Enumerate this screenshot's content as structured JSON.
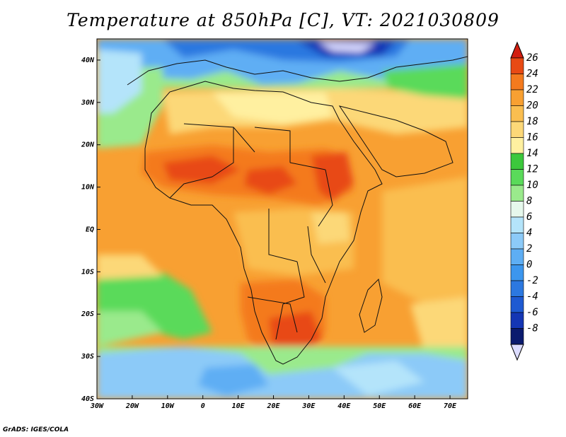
{
  "title": "Temperature at 850hPa [C], VT: 2021030809",
  "footer": "GrADS: IGES/COLA",
  "map": {
    "lon_range": [
      -30,
      75
    ],
    "lat_range": [
      -40,
      45
    ],
    "x_ticks": [
      {
        "value": -30,
        "label": "30W"
      },
      {
        "value": -20,
        "label": "20W"
      },
      {
        "value": -10,
        "label": "10W"
      },
      {
        "value": 0,
        "label": "0"
      },
      {
        "value": 10,
        "label": "10E"
      },
      {
        "value": 20,
        "label": "20E"
      },
      {
        "value": 30,
        "label": "30E"
      },
      {
        "value": 40,
        "label": "40E"
      },
      {
        "value": 50,
        "label": "50E"
      },
      {
        "value": 60,
        "label": "60E"
      },
      {
        "value": 70,
        "label": "70E"
      }
    ],
    "y_ticks": [
      {
        "value": 40,
        "label": "40N"
      },
      {
        "value": 30,
        "label": "30N"
      },
      {
        "value": 20,
        "label": "20N"
      },
      {
        "value": 10,
        "label": "10N"
      },
      {
        "value": 0,
        "label": "EQ"
      },
      {
        "value": -10,
        "label": "10S"
      },
      {
        "value": -20,
        "label": "20S"
      },
      {
        "value": -30,
        "label": "30S"
      },
      {
        "value": -40,
        "label": "40S"
      }
    ]
  },
  "colorbar": {
    "levels": [
      {
        "label": "-8",
        "color": "#0a1a6e"
      },
      {
        "label": "-6",
        "color": "#1436b4"
      },
      {
        "label": "-4",
        "color": "#1e5ad2"
      },
      {
        "label": "-2",
        "color": "#2c78e0"
      },
      {
        "label": "0",
        "color": "#3c96ee"
      },
      {
        "label": "2",
        "color": "#5eaef4"
      },
      {
        "label": "4",
        "color": "#8ccaf8"
      },
      {
        "label": "6",
        "color": "#b4e4fa"
      },
      {
        "label": "8",
        "color": "#e6f8ec"
      },
      {
        "label": "10",
        "color": "#9aea8c"
      },
      {
        "label": "12",
        "color": "#5ada5a"
      },
      {
        "label": "14",
        "color": "#3cc83c"
      },
      {
        "label": "16",
        "color": "#fff0a0"
      },
      {
        "label": "18",
        "color": "#fcd878"
      },
      {
        "label": "20",
        "color": "#fabe50"
      },
      {
        "label": "22",
        "color": "#f8a032"
      },
      {
        "label": "24",
        "color": "#f47a1e"
      },
      {
        "label": "26",
        "color": "#e84a14"
      }
    ],
    "max_color": "#d21e10",
    "min_color": "#dcdcff"
  }
}
